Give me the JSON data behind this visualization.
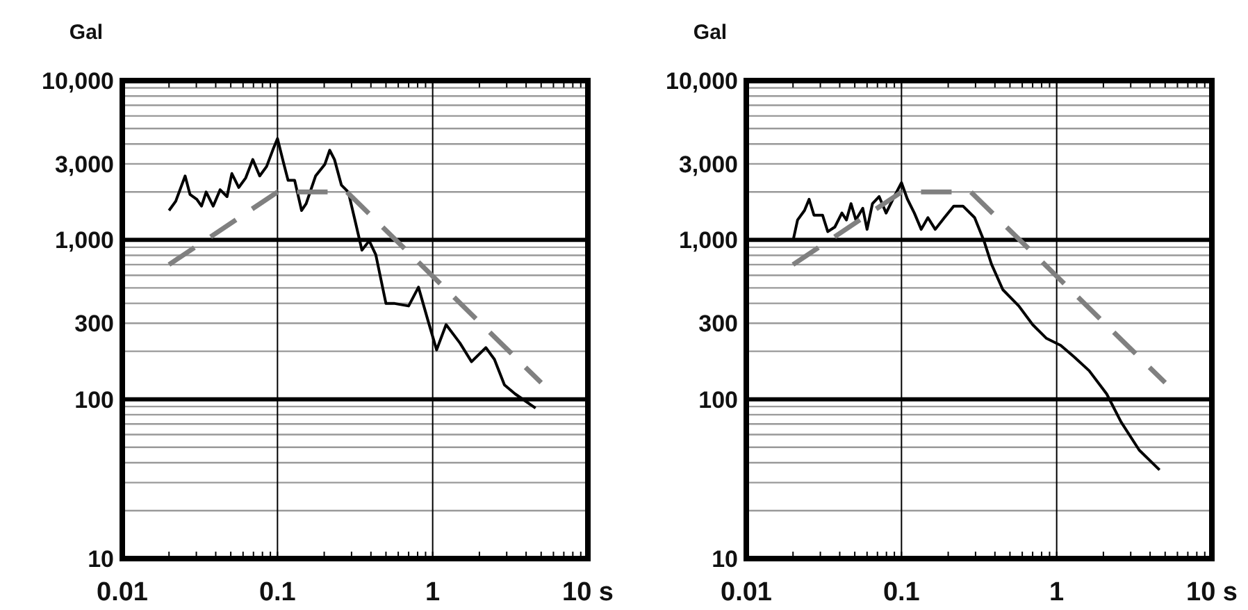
{
  "chart_data": [
    {
      "type": "line",
      "ylabel": "Gal",
      "log": "xy",
      "grid": true,
      "xlim": [
        0.01,
        10
      ],
      "ylim": [
        10,
        10000
      ],
      "xticks": [
        0.01,
        {
          "value": 0.02,
          "label": null
        },
        {
          "value": 0.03,
          "label": null
        },
        {
          "value": 0.04,
          "label": null
        },
        {
          "value": 0.05,
          "label": null
        },
        {
          "value": 0.06,
          "label": null
        },
        {
          "value": 0.07,
          "label": null
        },
        {
          "value": 0.08,
          "label": null
        },
        {
          "value": 0.09,
          "label": null
        },
        0.1,
        {
          "value": 0.2,
          "label": null
        },
        {
          "value": 0.3,
          "label": null
        },
        {
          "value": 0.4,
          "label": null
        },
        {
          "value": 0.5,
          "label": null
        },
        {
          "value": 0.6,
          "label": null
        },
        {
          "value": 0.7,
          "label": null
        },
        {
          "value": 0.8,
          "label": null
        },
        {
          "value": 0.9,
          "label": null
        },
        1,
        {
          "value": 2,
          "label": null
        },
        {
          "value": 3,
          "label": null
        },
        {
          "value": 4,
          "label": null
        },
        {
          "value": 5,
          "label": null
        },
        {
          "value": 6,
          "label": null
        },
        {
          "value": 7,
          "label": null
        },
        {
          "value": 8,
          "label": null
        },
        {
          "value": 9,
          "label": null
        },
        {
          "value": 10,
          "label": "10 s"
        }
      ],
      "yticks": [
        10,
        {
          "value": 20,
          "label": null
        },
        {
          "value": 30,
          "label": null
        },
        {
          "value": 40,
          "label": null
        },
        {
          "value": 50,
          "label": null
        },
        {
          "value": 60,
          "label": null
        },
        {
          "value": 70,
          "label": null
        },
        {
          "value": 80,
          "label": null
        },
        {
          "value": 90,
          "label": null
        },
        100,
        {
          "value": 200,
          "label": null
        },
        300,
        {
          "value": 400,
          "label": null
        },
        {
          "value": 500,
          "label": null
        },
        {
          "value": 600,
          "label": null
        },
        {
          "value": 700,
          "label": null
        },
        {
          "value": 800,
          "label": null
        },
        {
          "value": 900,
          "label": null
        },
        {
          "value": 1000,
          "label": "1,000"
        },
        {
          "value": 2000,
          "label": null
        },
        {
          "value": 3000,
          "label": "3,000"
        },
        {
          "value": 4000,
          "label": null
        },
        {
          "value": 5000,
          "label": null
        },
        {
          "value": 6000,
          "label": null
        },
        {
          "value": 7000,
          "label": null
        },
        {
          "value": 8000,
          "label": null
        },
        {
          "value": 9000,
          "label": null
        },
        {
          "value": 10000,
          "label": "10,000"
        }
      ],
      "series": [
        {
          "color": "#000000",
          "line_style": "solid",
          "x": [
            0.02,
            0.0221,
            0.0254,
            0.0273,
            0.0302,
            0.0324,
            0.0347,
            0.0385,
            0.0427,
            0.0473,
            0.0508,
            0.0563,
            0.0624,
            0.0693,
            0.0768,
            0.0851,
            0.0944,
            0.1,
            0.109,
            0.117,
            0.129,
            0.143,
            0.153,
            0.176,
            0.202,
            0.217,
            0.233,
            0.258,
            0.286,
            0.318,
            0.35,
            0.39,
            0.43,
            0.5,
            0.57,
            0.7,
            0.81,
            0.93,
            1.06,
            1.22,
            1.5,
            1.78,
            2.2,
            2.5,
            2.9,
            3.4,
            4.6
          ],
          "values": [
            1530,
            1750,
            2520,
            1930,
            1800,
            1630,
            2000,
            1630,
            2065,
            1870,
            2610,
            2135,
            2450,
            3195,
            2520,
            2890,
            3780,
            4325,
            3090,
            2365,
            2365,
            1530,
            1690,
            2520,
            2985,
            3655,
            3195,
            2210,
            2000,
            1290,
            863,
            987,
            807,
            399,
            399,
            385,
            505,
            315,
            204,
            294,
            225,
            172,
            211,
            178,
            123,
            108,
            88
          ]
        },
        {
          "color": "#808080",
          "line_style": "dashed",
          "x": [
            0.02,
            0.1,
            0.28,
            5
          ],
          "values": [
            700,
            2000,
            2000,
            127
          ]
        }
      ]
    },
    {
      "type": "line",
      "ylabel": "Gal",
      "log": "xy",
      "grid": true,
      "xlim": [
        0.01,
        10
      ],
      "ylim": [
        10,
        10000
      ],
      "xticks": [
        0.01,
        {
          "value": 0.02,
          "label": null
        },
        {
          "value": 0.03,
          "label": null
        },
        {
          "value": 0.04,
          "label": null
        },
        {
          "value": 0.05,
          "label": null
        },
        {
          "value": 0.06,
          "label": null
        },
        {
          "value": 0.07,
          "label": null
        },
        {
          "value": 0.08,
          "label": null
        },
        {
          "value": 0.09,
          "label": null
        },
        0.1,
        {
          "value": 0.2,
          "label": null
        },
        {
          "value": 0.3,
          "label": null
        },
        {
          "value": 0.4,
          "label": null
        },
        {
          "value": 0.5,
          "label": null
        },
        {
          "value": 0.6,
          "label": null
        },
        {
          "value": 0.7,
          "label": null
        },
        {
          "value": 0.8,
          "label": null
        },
        {
          "value": 0.9,
          "label": null
        },
        1,
        {
          "value": 2,
          "label": null
        },
        {
          "value": 3,
          "label": null
        },
        {
          "value": 4,
          "label": null
        },
        {
          "value": 5,
          "label": null
        },
        {
          "value": 6,
          "label": null
        },
        {
          "value": 7,
          "label": null
        },
        {
          "value": 8,
          "label": null
        },
        {
          "value": 9,
          "label": null
        },
        {
          "value": 10,
          "label": "10 s"
        }
      ],
      "yticks": [
        10,
        {
          "value": 20,
          "label": null
        },
        {
          "value": 30,
          "label": null
        },
        {
          "value": 40,
          "label": null
        },
        {
          "value": 50,
          "label": null
        },
        {
          "value": 60,
          "label": null
        },
        {
          "value": 70,
          "label": null
        },
        {
          "value": 80,
          "label": null
        },
        {
          "value": 90,
          "label": null
        },
        100,
        {
          "value": 200,
          "label": null
        },
        300,
        {
          "value": 400,
          "label": null
        },
        {
          "value": 500,
          "label": null
        },
        {
          "value": 600,
          "label": null
        },
        {
          "value": 700,
          "label": null
        },
        {
          "value": 800,
          "label": null
        },
        {
          "value": 900,
          "label": null
        },
        {
          "value": 1000,
          "label": "1,000"
        },
        {
          "value": 2000,
          "label": null
        },
        {
          "value": 3000,
          "label": "3,000"
        },
        {
          "value": 4000,
          "label": null
        },
        {
          "value": 5000,
          "label": null
        },
        {
          "value": 6000,
          "label": null
        },
        {
          "value": 7000,
          "label": null
        },
        {
          "value": 8000,
          "label": null
        },
        {
          "value": 9000,
          "label": null
        },
        {
          "value": 10000,
          "label": "10,000"
        }
      ],
      "series": [
        {
          "color": "#000000",
          "line_style": "solid",
          "x": [
            0.02,
            0.0214,
            0.0237,
            0.0254,
            0.0273,
            0.031,
            0.0335,
            0.0372,
            0.0413,
            0.0442,
            0.0473,
            0.0508,
            0.0563,
            0.06,
            0.065,
            0.0718,
            0.0796,
            0.0883,
            0.1,
            0.109,
            0.121,
            0.134,
            0.148,
            0.165,
            0.189,
            0.217,
            0.249,
            0.296,
            0.34,
            0.38,
            0.45,
            0.57,
            0.7,
            0.86,
            1.06,
            1.3,
            1.62,
            2.1,
            2.6,
            3.4,
            4.6
          ],
          "values": [
            987,
            1335,
            1530,
            1800,
            1430,
            1430,
            1127,
            1205,
            1475,
            1335,
            1690,
            1335,
            1580,
            1165,
            1690,
            1870,
            1475,
            1810,
            2285,
            1810,
            1475,
            1165,
            1380,
            1165,
            1380,
            1630,
            1630,
            1380,
            987,
            705,
            487,
            385,
            294,
            241,
            218,
            184,
            151,
            108,
            72,
            48,
            36
          ]
        },
        {
          "color": "#808080",
          "line_style": "dashed",
          "x": [
            0.02,
            0.1,
            0.28,
            5
          ],
          "values": [
            700,
            2000,
            2000,
            127
          ]
        }
      ]
    }
  ]
}
